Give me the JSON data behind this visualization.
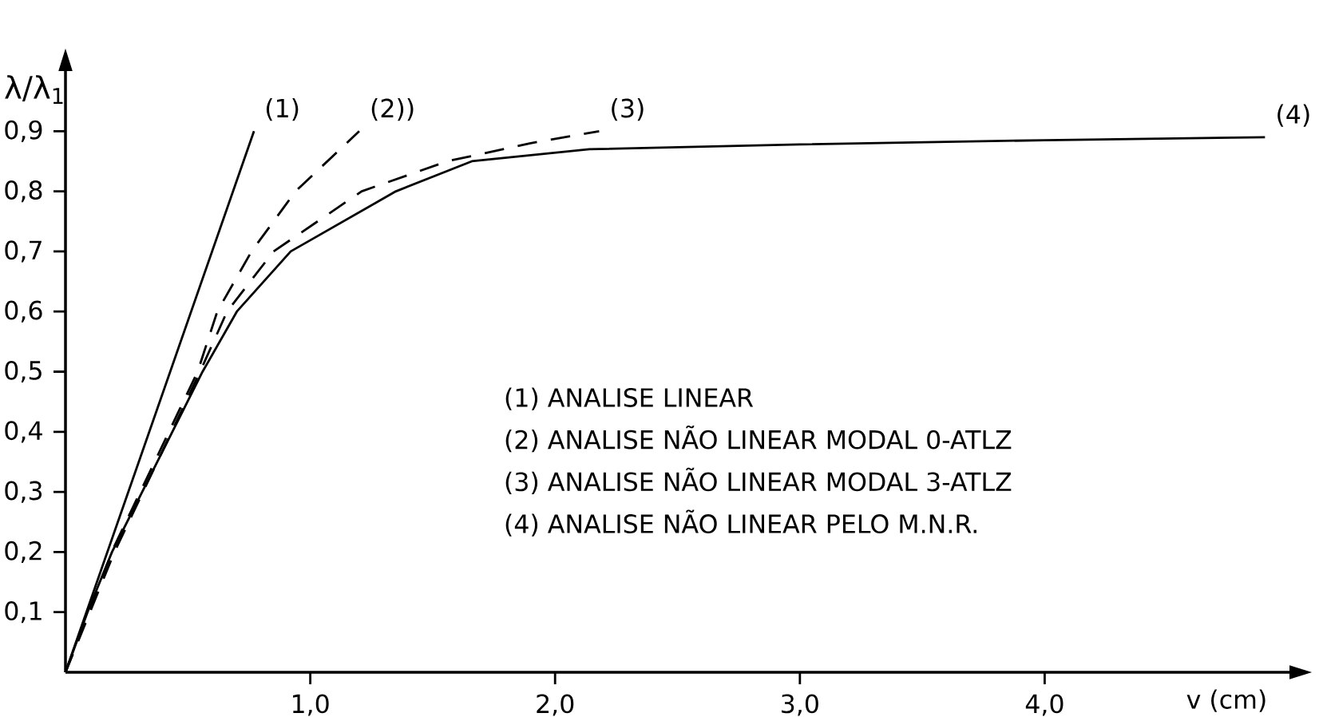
{
  "chart_data": {
    "type": "line",
    "ylabel": "λ/λ$_{1}$",
    "xlabel": "v (cm)",
    "xlim": [
      0,
      5
    ],
    "ylim": [
      0,
      1.0
    ],
    "xticks": [
      {
        "value": 1,
        "label": "1,0"
      },
      {
        "value": 2,
        "label": "2,0"
      },
      {
        "value": 3,
        "label": "3,0"
      },
      {
        "value": 4,
        "label": "4,0"
      }
    ],
    "yticks": [
      {
        "value": 0.1,
        "label": "0,1"
      },
      {
        "value": 0.2,
        "label": "0,2"
      },
      {
        "value": 0.3,
        "label": "0,3"
      },
      {
        "value": 0.4,
        "label": "0,4"
      },
      {
        "value": 0.5,
        "label": "0,5"
      },
      {
        "value": 0.6,
        "label": "0,6"
      },
      {
        "value": 0.7,
        "label": "0,7"
      },
      {
        "value": 0.8,
        "label": "0,8"
      },
      {
        "value": 0.9,
        "label": "0,9"
      }
    ],
    "grid": false,
    "series": [
      {
        "name": "(1)",
        "color": "#000000",
        "line_style": "solid",
        "x": [
          0,
          0.77
        ],
        "values": [
          0,
          0.9
        ]
      },
      {
        "name": "(2))",
        "color": "#000000",
        "line_style": "dashed",
        "x": [
          0,
          0.2,
          0.54,
          0.62,
          0.76,
          0.94,
          1.2
        ],
        "values": [
          0,
          0.21,
          0.5,
          0.6,
          0.7,
          0.8,
          0.9
        ]
      },
      {
        "name": "(3)",
        "color": "#000000",
        "line_style": "dashed",
        "x": [
          0,
          0.2,
          0.55,
          0.66,
          0.85,
          1.21,
          1.56,
          1.9,
          2.18
        ],
        "values": [
          0,
          0.2,
          0.5,
          0.6,
          0.7,
          0.8,
          0.85,
          0.88,
          0.9
        ]
      },
      {
        "name": "(4)",
        "color": "#000000",
        "line_style": "solid",
        "x": [
          0,
          0.09,
          0.19,
          0.56,
          0.7,
          0.92,
          1.35,
          1.66,
          2.14,
          3.0,
          4.0,
          4.9
        ],
        "values": [
          0,
          0.1,
          0.2,
          0.5,
          0.6,
          0.7,
          0.8,
          0.85,
          0.87,
          0.878,
          0.885,
          0.89
        ]
      }
    ],
    "annotations": [
      "(1) ANALISE  LINEAR",
      "(2) ANALISE  NÃO  LINEAR  MODAL  0-ATLZ",
      "(3) ANALISE  NÃO  LINEAR  MODAL  3-ATLZ",
      "(4) ANALISE  NÃO  LINEAR  PELO  M.N.R."
    ]
  }
}
